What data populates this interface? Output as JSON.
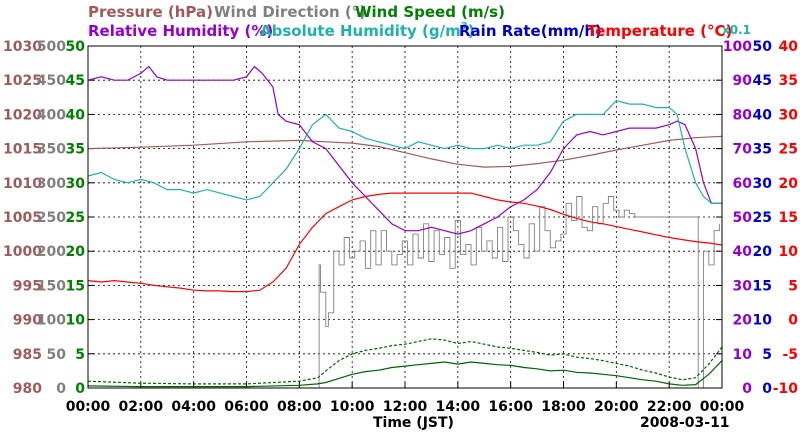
{
  "chart_data": {
    "type": "line",
    "xlabel": "Time (JST)",
    "date": "2008-03-11",
    "x_ticks": [
      "00:00",
      "02:00",
      "04:00",
      "06:00",
      "08:00",
      "10:00",
      "12:00",
      "14:00",
      "16:00",
      "18:00",
      "20:00",
      "22:00",
      "00:00"
    ],
    "x_range_hours": [
      0,
      24
    ],
    "grid": true,
    "legend": {
      "pressure": "Pressure (hPa)",
      "wind_direction": "Wind Direction (°)",
      "wind_speed": "Wind Speed (m/s)",
      "relative_humidity": "Relative Humidity (%)",
      "absolute_humidity": "Absolute Humidity (g/m",
      "absolute_humidity_sup": "3",
      "absolute_humidity_close": ")",
      "rain_rate": "Rain Rate(mm/h)",
      "temperature": "Temperature (°C)",
      "abs_scale_note": "x0.1"
    },
    "axes": {
      "pressure": {
        "range": [
          980,
          1030
        ],
        "ticks": [
          "1030",
          "1025",
          "1020",
          "1015",
          "1010",
          "1005",
          "1000",
          "995",
          "990",
          "985",
          "980"
        ]
      },
      "wind_direction": {
        "range": [
          0,
          500
        ],
        "ticks": [
          "500",
          "450",
          "400",
          "350",
          "300",
          "250",
          "200",
          "150",
          "100",
          "50",
          "0"
        ]
      },
      "wind_speed": {
        "range": [
          0,
          50
        ],
        "ticks": [
          "50",
          "45",
          "40",
          "35",
          "30",
          "25",
          "20",
          "15",
          "10",
          "5",
          "0"
        ]
      },
      "humidity": {
        "range": [
          0,
          100
        ],
        "ticks": [
          "100",
          "90",
          "80",
          "70",
          "60",
          "50",
          "40",
          "30",
          "20",
          "10",
          "0"
        ]
      },
      "rain_rate": {
        "range": [
          0,
          50
        ],
        "ticks": [
          "50",
          "45",
          "40",
          "35",
          "30",
          "25",
          "20",
          "15",
          "10",
          "5",
          "0"
        ]
      },
      "temperature": {
        "range": [
          -10,
          40
        ],
        "ticks": [
          "40",
          "35",
          "30",
          "25",
          "20",
          "15",
          "10",
          "5",
          "0",
          "-5",
          "-10"
        ]
      }
    },
    "series": [
      {
        "name": "Pressure (hPa)",
        "axis": "pressure",
        "color": "#a05a5a",
        "x": [
          0,
          2,
          4,
          6,
          8,
          9,
          10,
          11,
          12,
          13,
          14,
          15,
          16,
          17,
          18,
          19,
          20,
          21,
          22,
          23,
          24
        ],
        "y": [
          1015,
          1015.2,
          1015.5,
          1016,
          1016.2,
          1016,
          1015.8,
          1015.3,
          1014.4,
          1013.5,
          1012.7,
          1012.3,
          1012.4,
          1012.8,
          1013.3,
          1014,
          1014.8,
          1015.5,
          1016.2,
          1016.6,
          1016.8
        ]
      },
      {
        "name": "Wind Direction (°)",
        "axis": "wind_direction",
        "color": "#808080",
        "x": [
          8.7,
          8.75,
          8.8,
          8.9,
          9.0,
          9.1,
          9.3,
          9.5,
          9.7,
          9.9,
          10.1,
          10.3,
          10.5,
          10.7,
          10.9,
          11.1,
          11.3,
          11.5,
          11.7,
          11.9,
          12.1,
          12.3,
          12.5,
          12.7,
          12.9,
          13.1,
          13.3,
          13.5,
          13.7,
          13.9,
          14.1,
          14.3,
          14.5,
          14.7,
          14.9,
          15.1,
          15.3,
          15.5,
          15.7,
          15.9,
          16.1,
          16.3,
          16.5,
          16.7,
          16.9,
          17.1,
          17.3,
          17.5,
          17.7,
          17.9,
          18.1,
          18.3,
          18.5,
          18.7,
          18.9,
          19.1,
          19.3,
          19.5,
          19.7,
          19.9,
          20.1,
          20.3,
          20.5,
          20.7,
          20.9,
          21.1,
          21.3,
          21.5,
          21.7,
          21.9,
          22.1,
          22.3,
          22.5,
          22.7,
          22.9,
          23.1,
          23.3,
          23.5,
          23.7,
          23.9
        ],
        "y": [
          0,
          180,
          140,
          140,
          90,
          110,
          200,
          180,
          220,
          190,
          200,
          215,
          175,
          230,
          180,
          230,
          200,
          180,
          195,
          215,
          180,
          225,
          190,
          240,
          185,
          230,
          195,
          220,
          175,
          245,
          195,
          210,
          180,
          235,
          200,
          215,
          190,
          235,
          185,
          250,
          230,
          210,
          190,
          240,
          200,
          265,
          230,
          205,
          215,
          225,
          270,
          245,
          280,
          235,
          230,
          265,
          240,
          270,
          280,
          260,
          250,
          260,
          255,
          250,
          250,
          250,
          250,
          250,
          250,
          250,
          250,
          250,
          250,
          250,
          250,
          0,
          200,
          180,
          230,
          240
        ]
      },
      {
        "name": "Wind Speed (m/s) mean",
        "axis": "wind_speed",
        "color": "#006400",
        "x": [
          0,
          2,
          4,
          6,
          8,
          8.7,
          9,
          9.5,
          10,
          10.5,
          11,
          11.5,
          12,
          12.5,
          13,
          13.5,
          14,
          14.5,
          15,
          15.5,
          16,
          16.5,
          17,
          17.5,
          18,
          18.5,
          19,
          19.5,
          20,
          20.5,
          21,
          21.5,
          22,
          22.5,
          23,
          23.5,
          24
        ],
        "y": [
          0.3,
          0.2,
          0.2,
          0.2,
          0.4,
          0.6,
          0.8,
          1.4,
          2.0,
          2.4,
          2.6,
          3.0,
          3.2,
          3.4,
          3.6,
          3.8,
          3.5,
          3.8,
          3.6,
          3.4,
          3.3,
          3.0,
          2.8,
          2.5,
          2.6,
          2.3,
          2.2,
          2.0,
          1.8,
          1.5,
          1.2,
          1.0,
          0.6,
          0.4,
          0.5,
          2.0,
          4.0
        ]
      },
      {
        "name": "Wind Speed (m/s) gust",
        "axis": "wind_speed",
        "color": "#006400",
        "dashed": true,
        "x": [
          0,
          2,
          4,
          6,
          8,
          8.7,
          9,
          9.5,
          10,
          10.5,
          11,
          11.5,
          12,
          12.5,
          13,
          13.5,
          14,
          14.5,
          15,
          15.5,
          16,
          16.5,
          17,
          17.5,
          18,
          18.5,
          19,
          19.5,
          20,
          20.5,
          21,
          21.5,
          22,
          22.5,
          23,
          23.5,
          24
        ],
        "y": [
          1.0,
          0.7,
          0.6,
          0.6,
          1.0,
          1.5,
          2.5,
          4.0,
          5.0,
          5.5,
          5.8,
          6.2,
          6.4,
          6.8,
          7.2,
          7.0,
          6.5,
          6.8,
          6.4,
          6.0,
          5.8,
          5.5,
          5.2,
          4.8,
          5.0,
          4.5,
          4.3,
          4.0,
          3.6,
          3.2,
          2.6,
          2.2,
          1.6,
          1.2,
          1.5,
          3.5,
          6.0
        ]
      },
      {
        "name": "Relative Humidity (%)",
        "axis": "humidity",
        "color": "#9400d3",
        "x": [
          0,
          0.5,
          1,
          1.5,
          2,
          2.3,
          2.6,
          3,
          3.5,
          4,
          4.5,
          5,
          5.5,
          6,
          6.3,
          6.6,
          7,
          7.2,
          7.5,
          8,
          8.5,
          9,
          9.5,
          10,
          10.5,
          11,
          11.5,
          12,
          12.5,
          13,
          13.5,
          14,
          14.5,
          15,
          15.5,
          16,
          16.5,
          17,
          17.5,
          18,
          18.5,
          19,
          19.5,
          20,
          20.5,
          21,
          21.5,
          22,
          22.3,
          22.6,
          23,
          23.3,
          23.6,
          24
        ],
        "y": [
          90,
          91,
          90,
          90,
          92,
          94,
          91,
          90,
          90,
          90,
          90,
          90,
          90,
          91,
          94,
          92,
          88,
          80,
          78,
          77,
          72,
          70,
          65,
          60,
          56,
          52,
          48,
          46,
          46,
          47,
          46,
          45,
          46,
          48,
          50,
          53,
          55,
          58,
          63,
          70,
          74,
          75,
          74,
          75,
          76,
          76,
          76,
          77,
          78,
          77,
          70,
          60,
          54,
          54
        ]
      },
      {
        "name": "Absolute Humidity (g/m3) x0.1",
        "axis": "humidity",
        "color": "#20b2aa",
        "x": [
          0,
          0.5,
          1,
          1.5,
          2,
          2.5,
          3,
          3.5,
          4,
          4.5,
          5,
          5.5,
          6,
          6.5,
          7,
          7.5,
          8,
          8.5,
          9,
          9.5,
          10,
          10.5,
          11,
          11.5,
          12,
          12.5,
          13,
          13.5,
          14,
          14.5,
          15,
          15.5,
          16,
          16.5,
          17,
          17.5,
          18,
          18.5,
          19,
          19.5,
          20,
          20.5,
          21,
          21.5,
          22,
          22.3,
          22.6,
          23,
          23.3,
          23.6,
          24
        ],
        "y": [
          62,
          63,
          61,
          60,
          61,
          60,
          58,
          58,
          57,
          58,
          57,
          56,
          55,
          56,
          60,
          64,
          70,
          77,
          80,
          76,
          75,
          73,
          72,
          71,
          70,
          72,
          71,
          70,
          71,
          70,
          70,
          71,
          70,
          71,
          71,
          72,
          78,
          80,
          80,
          80,
          84,
          83,
          83,
          82,
          82,
          80,
          70,
          60,
          56,
          54,
          54
        ]
      },
      {
        "name": "Temperature (°C)",
        "axis": "temperature",
        "color": "#ff0000",
        "x": [
          0,
          0.5,
          1,
          1.5,
          2,
          2.5,
          3,
          3.5,
          4,
          4.5,
          5,
          5.5,
          6,
          6.5,
          7,
          7.5,
          8,
          8.5,
          9,
          9.5,
          10,
          10.5,
          11,
          11.5,
          12,
          12.5,
          13,
          13.5,
          14,
          14.5,
          15,
          15.5,
          16,
          16.5,
          17,
          17.5,
          18,
          18.5,
          19,
          19.5,
          20,
          20.5,
          21,
          21.5,
          22,
          22.5,
          23,
          23.5,
          24
        ],
        "y": [
          5.7,
          5.5,
          5.7,
          5.5,
          5.3,
          5.0,
          4.8,
          4.6,
          4.3,
          4.2,
          4.2,
          4.1,
          4.1,
          4.3,
          5.5,
          7.5,
          11.0,
          13.5,
          15.5,
          16.5,
          17.5,
          18.0,
          18.3,
          18.5,
          18.5,
          18.5,
          18.5,
          18.5,
          18.5,
          18.5,
          18.0,
          17.5,
          17.2,
          17.0,
          16.6,
          16.1,
          15.4,
          14.8,
          14.3,
          14.0,
          13.6,
          13.2,
          12.8,
          12.4,
          12.0,
          11.7,
          11.4,
          11.2,
          10.9
        ]
      }
    ],
    "notes": "Rain Rate series shows no data (0 mm/h)."
  }
}
